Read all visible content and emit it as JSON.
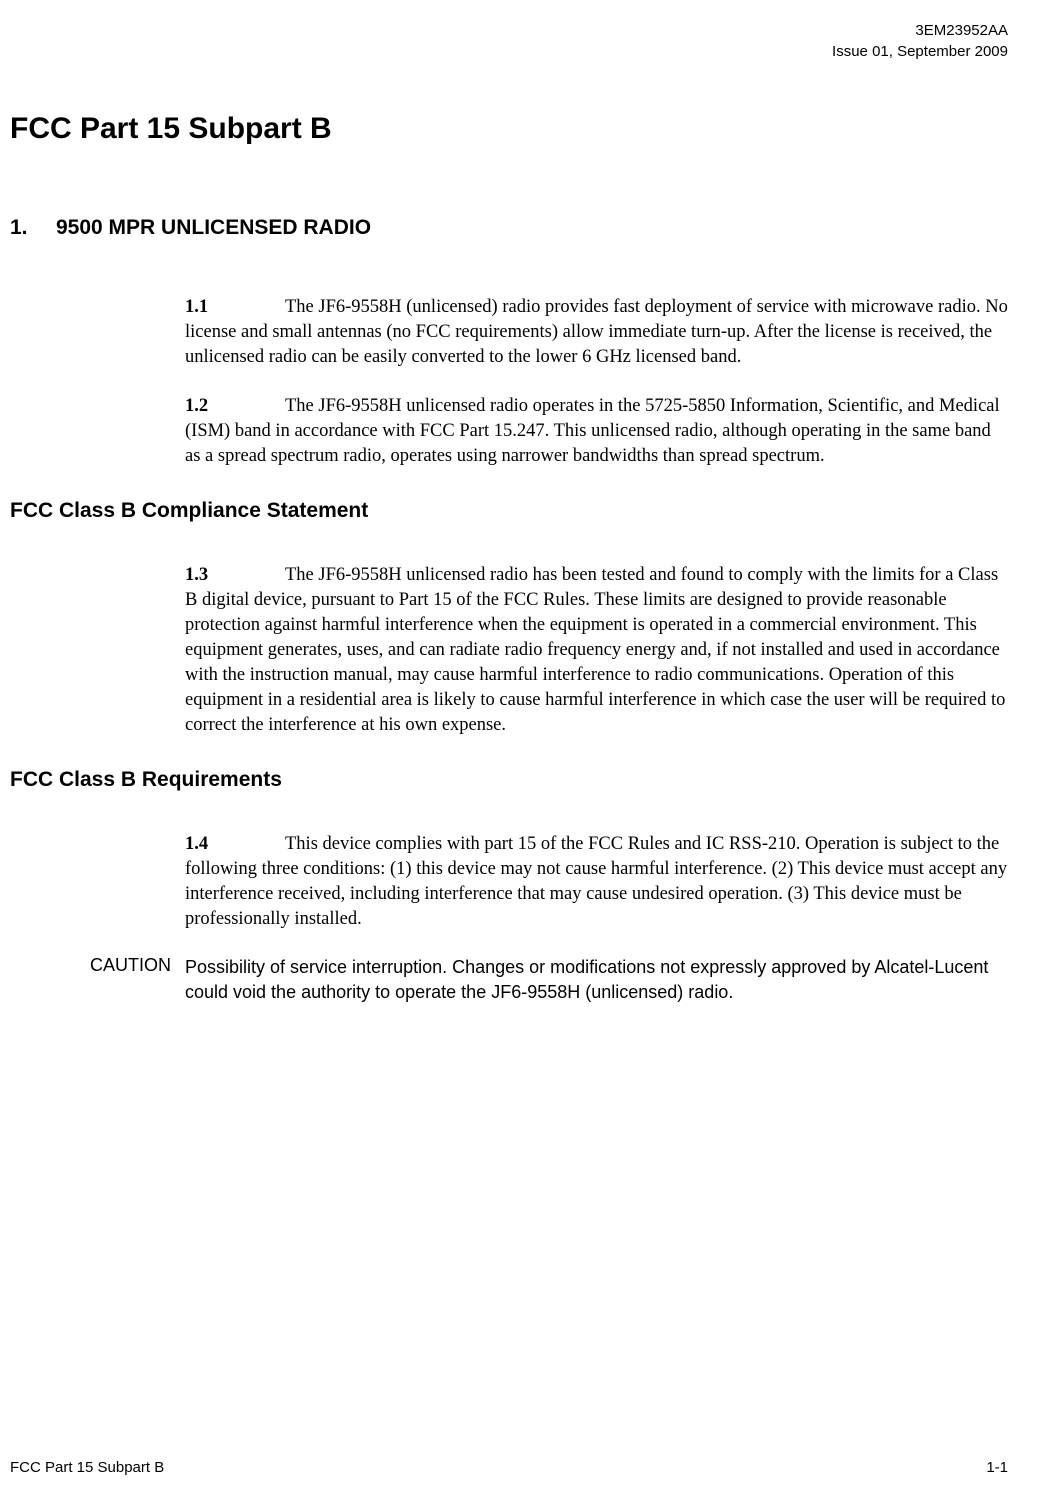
{
  "header": {
    "doc_id": "3EM23952AA",
    "issue_line": "Issue 01, September 2009"
  },
  "main_title": "FCC Part 15 Subpart B",
  "section1": {
    "number": "1.",
    "title": "9500 MPR UNLICENSED RADIO"
  },
  "para_1_1": {
    "num": "1.1",
    "text": "The JF6-9558H (unlicensed) radio provides fast deployment of service with microwave radio. No license and small antennas (no FCC requirements) allow immediate turn-up. After the license is received, the unlicensed radio can be easily converted to the lower 6 GHz licensed band."
  },
  "para_1_2": {
    "num": "1.2",
    "text": "The JF6-9558H unlicensed radio operates in the 5725-5850 Information, Scientific, and Medical (ISM) band in accordance with FCC Part 15.247. This unlicensed radio, although operating in the same band as a spread spectrum radio, operates using narrower bandwidths than spread spectrum."
  },
  "subsection_compliance": "FCC Class B Compliance Statement",
  "para_1_3": {
    "num": "1.3",
    "text": "The JF6-9558H unlicensed radio has been tested and found to comply with the limits for a Class B digital device, pursuant to Part 15 of the FCC Rules. These limits are designed to provide reasonable protection against harmful interference when the equipment is operated in a commercial environment. This equipment generates, uses, and can radiate radio frequency energy and, if not installed and used in accordance with the instruction manual, may cause harmful interference to radio communications. Operation of this equipment in a residential area is likely to cause harmful interference in which case the user will be required to correct the interference at his own expense."
  },
  "subsection_requirements": "FCC Class B Requirements",
  "para_1_4": {
    "num": "1.4",
    "text": "This device complies with part 15 of the FCC Rules and IC RSS-210. Operation is subject to the following three conditions: (1) this device may not cause harmful interference. (2) This device must accept any interference received, including interference that may cause undesired operation. (3) This device must be professionally installed."
  },
  "caution": {
    "label": "CAUTION",
    "text": "Possibility of service interruption. Changes or modifications not expressly approved by Alcatel-Lucent could void the authority to operate the JF6-9558H (unlicensed) radio."
  },
  "footer": {
    "left": "FCC Part 15 Subpart B",
    "right": "1-1"
  }
}
